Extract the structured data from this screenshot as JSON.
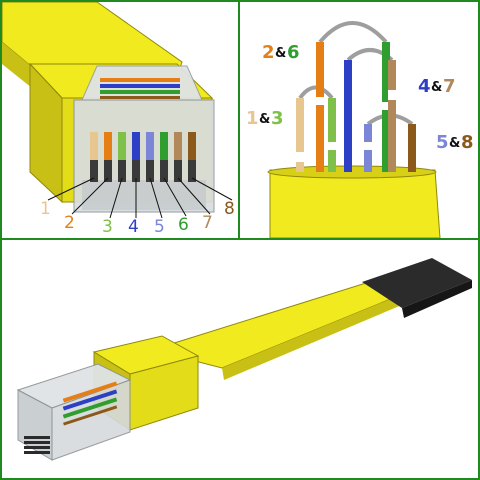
{
  "colors": {
    "frame": "#1f8a1f",
    "jacket": "#f0ea1e",
    "jacket_shade": "#c9c015",
    "jacket_dark": "#8f880c",
    "plug_clear": "#d9dde0",
    "contact": "#3a3a3a",
    "boot": "#2b2b2b"
  },
  "pins": [
    {
      "label": "1",
      "color": "#e8c690"
    },
    {
      "label": "2",
      "color": "#e67e16"
    },
    {
      "label": "3",
      "color": "#7ec04a"
    },
    {
      "label": "4",
      "color": "#2d3fc4"
    },
    {
      "label": "5",
      "color": "#7c86d6"
    },
    {
      "label": "6",
      "color": "#2f9e2f"
    },
    {
      "label": "7",
      "color": "#b0885a"
    },
    {
      "label": "8",
      "color": "#8b5a1b"
    }
  ],
  "pairs": [
    {
      "a": "2",
      "amp": "&",
      "b": "6",
      "color_a": "#e67e16",
      "color_b": "#2f9e2f"
    },
    {
      "a": "1",
      "amp": "&",
      "b": "3",
      "color_a": "#e8c690",
      "color_b": "#7ec04a"
    },
    {
      "a": "4",
      "amp": "&",
      "b": "7",
      "color_a": "#2d3fc4",
      "color_b": "#b0885a"
    },
    {
      "a": "5",
      "amp": "&",
      "b": "8",
      "color_a": "#7c86d6",
      "color_b": "#8b5a1b"
    }
  ]
}
